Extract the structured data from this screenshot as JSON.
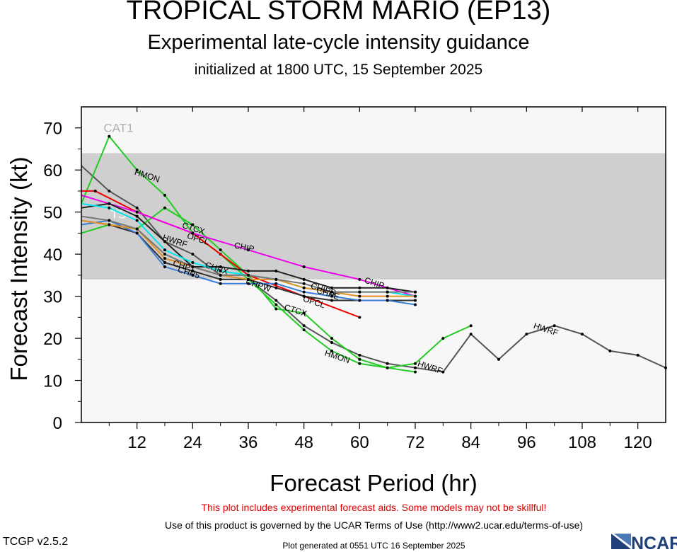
{
  "title": "TROPICAL STORM MARIO (EP13)",
  "subtitle": "Experimental late-cycle intensity guidance",
  "init_line": "initialized at 1800 UTC, 15 September 2025",
  "warning": "This plot includes experimental forecast aids. Some models may not be skillful!",
  "terms": "Use of this product is governed by the UCAR Terms of Use (http://www2.ucar.edu/terms-of-use)",
  "generated": "Plot generated at 0551 UTC   16 September 2025",
  "version": "TCGP v2.5.2",
  "logo_text": "NCAR",
  "colors": {
    "band": "#cfcfcf",
    "background": "#f7f7f7",
    "warning": "#e00000"
  },
  "chart_data": {
    "type": "line",
    "xlabel": "Forecast Period (hr)",
    "ylabel": "Forecast Intensity (kt)",
    "xlim": [
      0,
      126
    ],
    "ylim": [
      0,
      75
    ],
    "xticks": [
      12,
      24,
      36,
      48,
      60,
      72,
      84,
      96,
      108,
      120
    ],
    "yticks": [
      0,
      10,
      20,
      30,
      40,
      50,
      60,
      70
    ],
    "bands": [
      {
        "y0": 34,
        "y1": 64,
        "color": "#cfcfcf"
      }
    ],
    "band_labels": [
      {
        "text": "CAT1",
        "x": 8,
        "y": 69
      },
      {
        "text": "TS",
        "x": 8,
        "y": 48.5
      }
    ],
    "series": [
      {
        "name": "HWRF",
        "color": "#555555",
        "label_at": [
          [
            20,
            42.5
          ],
          [
            100,
            21.5
          ],
          [
            75,
            12.5
          ]
        ],
        "x": [
          0,
          6,
          12,
          18,
          24,
          30,
          36,
          42,
          48,
          54,
          60,
          66,
          72,
          78,
          84,
          90,
          96,
          102,
          108,
          114,
          120,
          126
        ],
        "y": [
          61,
          55,
          51,
          43,
          40,
          35,
          34,
          29,
          23,
          19,
          16,
          14,
          13,
          12,
          21,
          15,
          21,
          23,
          21,
          17,
          16,
          13
        ]
      },
      {
        "name": "HMON",
        "color": "#22cc22",
        "label_at": [
          [
            14,
            58
          ],
          [
            55,
            15
          ]
        ],
        "x": [
          0,
          6,
          12,
          18,
          24,
          30,
          36,
          42,
          48,
          54,
          60,
          66,
          72,
          78,
          84
        ],
        "y": [
          52,
          68,
          60,
          54,
          45,
          40,
          34,
          28,
          22,
          17,
          14,
          13,
          14,
          20,
          23
        ]
      },
      {
        "name": "CTCX",
        "color": "#22cc22",
        "label_at": [
          [
            24,
            45.5
          ],
          [
            46,
            26
          ]
        ],
        "x": [
          0,
          6,
          12,
          18,
          24,
          30,
          36,
          42,
          48,
          54,
          60,
          66,
          72
        ],
        "y": [
          45,
          47,
          46,
          51,
          47,
          41,
          35,
          27,
          26,
          20,
          15,
          13,
          12
        ]
      },
      {
        "name": "OFCL",
        "color": "#ee0000",
        "label_at": [
          [
            25,
            43
          ],
          [
            50,
            28
          ]
        ],
        "x": [
          0,
          3,
          12,
          24,
          36,
          48,
          60
        ],
        "y": [
          55,
          55,
          50,
          45,
          35,
          30,
          25
        ]
      },
      {
        "name": "CHIP",
        "color": "#ee00ee",
        "label_at": [
          [
            35,
            41
          ],
          [
            63,
            32.5
          ]
        ],
        "x": [
          0,
          6,
          12,
          24,
          36,
          48,
          60,
          72
        ],
        "y": [
          54,
          52,
          50,
          45,
          41,
          37,
          34,
          30
        ]
      },
      {
        "name": "CHIPS",
        "color": "#222222",
        "label_at": [
          [
            52,
            31
          ]
        ],
        "x": [
          0,
          6,
          12,
          18,
          24,
          30,
          36,
          42,
          48,
          54,
          60,
          66,
          72
        ],
        "y": [
          51,
          52,
          49,
          43,
          37,
          37,
          36,
          36,
          34,
          32,
          32,
          32,
          31
        ]
      },
      {
        "name": "CHP5",
        "color": "#333333",
        "label_at": [
          [
            23,
            35
          ]
        ],
        "x": [
          0,
          6,
          12,
          18,
          24,
          30,
          36,
          42,
          48,
          54,
          60,
          66,
          72
        ],
        "y": [
          48,
          47,
          45,
          38,
          36,
          34,
          34,
          32,
          30,
          29,
          29,
          29,
          29
        ]
      },
      {
        "name": "CHPX",
        "color": "#00e5ee",
        "label_at": [
          [
            29,
            36
          ]
        ],
        "x": [
          0,
          6,
          12,
          18,
          24,
          30,
          36,
          42,
          48,
          54,
          60,
          66,
          72
        ],
        "y": [
          52,
          51,
          48,
          41,
          38,
          36,
          35,
          34,
          32,
          31,
          31,
          31,
          30
        ]
      },
      {
        "name": "CHPE",
        "color": "#3a7fd5",
        "label_at": [
          [
            53,
            30
          ]
        ],
        "x": [
          0,
          6,
          12,
          18,
          24,
          30,
          36,
          42,
          48,
          54,
          60,
          66,
          72
        ],
        "y": [
          47,
          48,
          45,
          37,
          35,
          33,
          33,
          33,
          31,
          30,
          29,
          29,
          28
        ]
      },
      {
        "name": "CHPT",
        "color": "#e69020",
        "label_at": [
          [
            22,
            36.5
          ]
        ],
        "x": [
          0,
          6,
          12,
          18,
          24,
          30,
          36,
          42,
          48,
          54,
          60,
          66,
          72
        ],
        "y": [
          48,
          47,
          46,
          39,
          37,
          35,
          34,
          34,
          32,
          31,
          30,
          30,
          30
        ]
      },
      {
        "name": "CHPW",
        "color": "#777777",
        "label_at": [
          [
            38,
            32
          ]
        ],
        "x": [
          0,
          6,
          12,
          18,
          24,
          30,
          36,
          42,
          48,
          54,
          60,
          66,
          72
        ],
        "y": [
          49,
          48,
          46,
          40,
          37,
          35,
          35,
          34,
          33,
          31,
          31,
          31,
          31
        ]
      }
    ]
  }
}
